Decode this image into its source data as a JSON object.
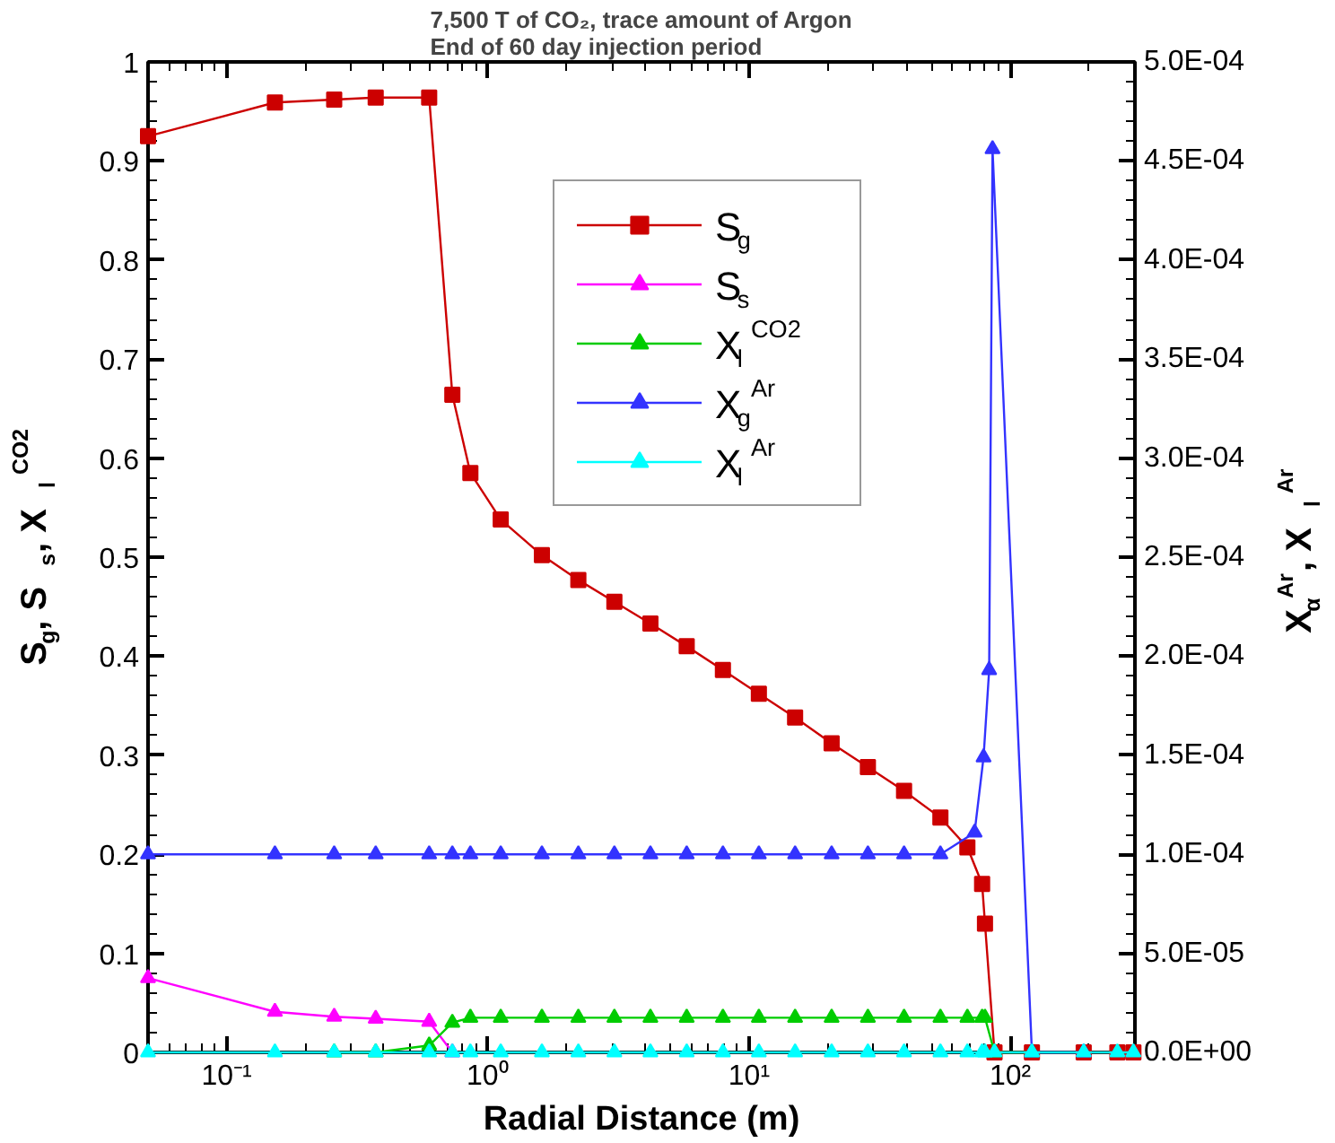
{
  "chart_data": {
    "type": "line",
    "title": "7,500 T of CO₂, trace amount of Argon\nEnd of 60 day injection period",
    "xlabel": "Radial Distance (m)",
    "ylabel": "S$_{g}$, S$_{s}$, X$_{l}$$^{CO2}$",
    "y2label": "X$_{α}$$^{Ar}$, X$_{l}$$^{Ar}$",
    "log": "x",
    "grid": false,
    "legend": "top",
    "line_style": "solid",
    "xlim": [
      0.05,
      300
    ],
    "xticks": [
      {
        "value": 0.1,
        "label": "10⁻¹"
      },
      {
        "value": 1,
        "label": "10⁰"
      },
      {
        "value": 10,
        "label": "10¹"
      },
      {
        "value": 100,
        "label": "10²"
      }
    ],
    "ylim": [
      0,
      1
    ],
    "yticks": [
      0,
      0.1,
      0.2,
      0.3,
      0.4,
      0.5,
      0.6,
      0.7,
      0.8,
      0.9,
      1
    ],
    "y2lim": [
      0,
      0.0005
    ],
    "y2ticks": [
      {
        "value": 0,
        "label": "0.0E+00"
      },
      {
        "value": 5e-05,
        "label": "5.0E-05"
      },
      {
        "value": 0.0001,
        "label": "1.0E-04"
      },
      {
        "value": 0.00015,
        "label": "1.5E-04"
      },
      {
        "value": 0.0002,
        "label": "2.0E-04"
      },
      {
        "value": 0.00025,
        "label": "2.5E-04"
      },
      {
        "value": 0.0003,
        "label": "3.0E-04"
      },
      {
        "value": 0.00035,
        "label": "3.5E-04"
      },
      {
        "value": 0.0004,
        "label": "4.0E-04"
      },
      {
        "value": 0.00045,
        "label": "4.5E-04"
      },
      {
        "value": 0.0005,
        "label": "5.0E-04"
      }
    ],
    "series": [
      {
        "name": "S$_{g}$",
        "color": "#cc0000",
        "marker": "square",
        "x": [
          0.05,
          0.153,
          0.258,
          0.372,
          0.596,
          0.731,
          0.857,
          1.12,
          1.61,
          2.22,
          3.05,
          4.19,
          5.77,
          7.94,
          10.9,
          15.0,
          20.7,
          28.5,
          39.2,
          54,
          68.5,
          78,
          80,
          87,
          121,
          191,
          257,
          296
        ],
        "values": [
          0.925,
          0.959,
          0.962,
          0.964,
          0.964,
          0.664,
          0.585,
          0.538,
          0.502,
          0.477,
          0.455,
          0.433,
          0.41,
          0.386,
          0.362,
          0.338,
          0.312,
          0.288,
          0.264,
          0.237,
          0.207,
          0.17,
          0.13,
          0,
          0,
          0,
          0,
          0
        ]
      },
      {
        "name": "S$_{s}$",
        "color": "#ff00ff",
        "marker": "triangle",
        "x": [
          0.05,
          0.153,
          0.258,
          0.372,
          0.596,
          0.731
        ],
        "values": [
          0.075,
          0.041,
          0.036,
          0.034,
          0.031,
          0
        ]
      },
      {
        "name": "X$_{l}$$^{CO2}$",
        "color": "#00cc00",
        "marker": "triangle",
        "x": [
          0.258,
          0.372,
          0.596,
          0.731,
          0.857,
          1.12,
          1.61,
          2.22,
          3.05,
          4.19,
          5.77,
          7.94,
          10.9,
          15.0,
          20.7,
          28.5,
          39.2,
          54,
          68.5,
          78,
          80,
          87,
          121
        ],
        "values": [
          0,
          0,
          0.007,
          0.03,
          0.035,
          0.035,
          0.035,
          0.035,
          0.035,
          0.035,
          0.035,
          0.035,
          0.035,
          0.035,
          0.035,
          0.035,
          0.035,
          0.035,
          0.035,
          0.035,
          0.035,
          0,
          0
        ]
      },
      {
        "name": "X$_{g}$$^{Ar}$",
        "color": "#3333ff",
        "marker": "triangle",
        "axis": "y2",
        "x": [
          0.05,
          0.153,
          0.258,
          0.372,
          0.596,
          0.731,
          0.857,
          1.12,
          1.61,
          2.22,
          3.05,
          4.19,
          5.77,
          7.94,
          10.9,
          15.0,
          20.7,
          28.5,
          39.2,
          54,
          73,
          79,
          83,
          85.5,
          121,
          191
        ],
        "values": [
          0.0001,
          0.0001,
          0.0001,
          0.0001,
          0.0001,
          0.0001,
          0.0001,
          0.0001,
          0.0001,
          0.0001,
          0.0001,
          0.0001,
          0.0001,
          0.0001,
          0.0001,
          0.0001,
          0.0001,
          0.0001,
          0.0001,
          0.0001,
          0.000111,
          0.000149,
          0.000193,
          0.000456,
          0,
          0
        ]
      },
      {
        "name": "X$_{l}$$^{Ar}$",
        "color": "#00ffff",
        "marker": "triangle",
        "axis": "y2",
        "x": [
          0.05,
          0.153,
          0.258,
          0.372,
          0.596,
          0.731,
          0.857,
          1.12,
          1.61,
          2.22,
          3.05,
          4.19,
          5.77,
          7.94,
          10.9,
          15.0,
          20.7,
          28.5,
          39.2,
          54,
          68.5,
          78,
          80,
          87,
          121,
          191,
          257,
          296
        ],
        "values": [
          0,
          0,
          0,
          0,
          0,
          0,
          0,
          0,
          0,
          0,
          0,
          0,
          0,
          0,
          0,
          0,
          0,
          0,
          0,
          0,
          0,
          0,
          0,
          0,
          0,
          0,
          0,
          0
        ]
      }
    ]
  }
}
